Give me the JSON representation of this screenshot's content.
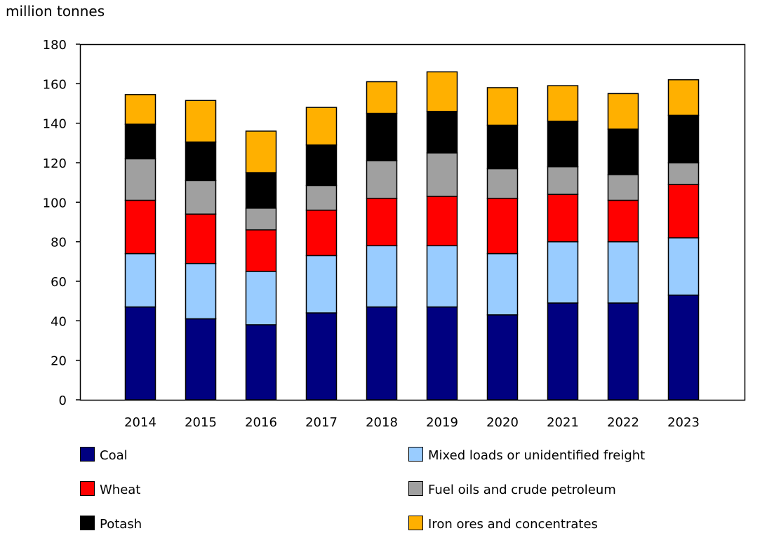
{
  "chart_data": {
    "type": "bar",
    "stacked": true,
    "title": "",
    "ylabel": "million tonnes",
    "xlabel": "",
    "ylim": [
      0,
      180
    ],
    "yticks": [
      0,
      20,
      40,
      60,
      80,
      100,
      120,
      140,
      160,
      180
    ],
    "grid": false,
    "legend_position": "bottom",
    "categories": [
      "2014",
      "2015",
      "2016",
      "2017",
      "2018",
      "2019",
      "2020",
      "2021",
      "2022",
      "2023"
    ],
    "series": [
      {
        "name": "Coal",
        "color": "#000080",
        "values": [
          47,
          41,
          38,
          44,
          47,
          47,
          43,
          49,
          49,
          53
        ]
      },
      {
        "name": "Mixed loads or unidentified freight",
        "color": "#99ccff",
        "values": [
          27,
          28,
          27,
          29,
          31,
          31,
          31,
          31,
          31,
          29
        ]
      },
      {
        "name": "Wheat",
        "color": "#ff0000",
        "values": [
          27,
          25,
          21,
          23,
          24,
          25,
          28,
          24,
          21,
          27
        ]
      },
      {
        "name": "Fuel oils and crude petroleum",
        "color": "#a0a0a0",
        "values": [
          21,
          17,
          11,
          12.5,
          19,
          22,
          15,
          14,
          13,
          11
        ]
      },
      {
        "name": "Potash",
        "color": "#000000",
        "values": [
          17.5,
          19.5,
          18,
          20.5,
          24,
          21,
          22,
          23,
          23,
          24
        ]
      },
      {
        "name": "Iron ores and concentrates",
        "color": "#ffb000",
        "values": [
          15,
          21,
          21,
          19,
          16,
          20,
          19,
          18,
          18,
          18
        ]
      }
    ]
  }
}
